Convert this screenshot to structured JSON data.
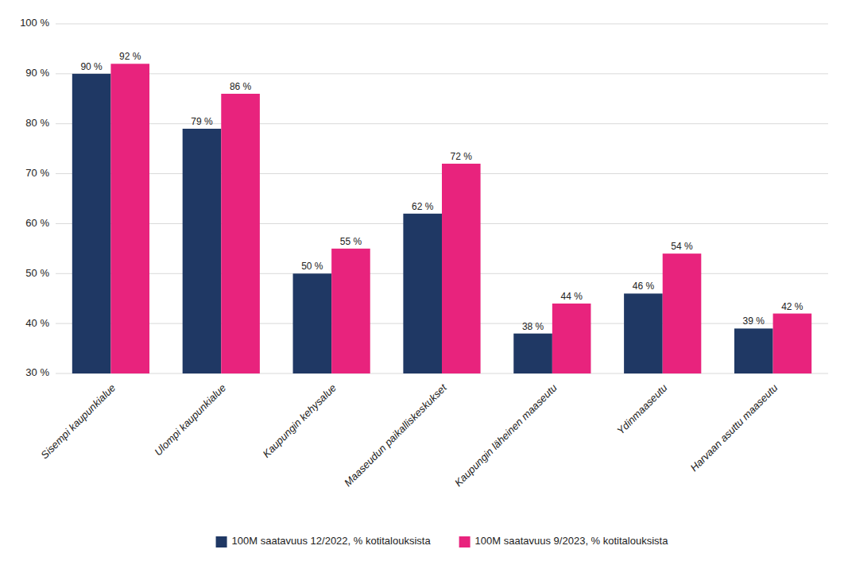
{
  "chart_data": {
    "type": "bar",
    "categories": [
      "Sisempi kaupunkialue",
      "Ulompi kaupunkialue",
      "Kaupungin kehysalue",
      "Maaseudun paikalliskeskukset",
      "Kaupungin läheinen maaseutu",
      "Ydinmaaseutu",
      "Harvaan asuttu maaseutu"
    ],
    "series": [
      {
        "name": "100M saatavuus 12/2022, % kotitalouksista",
        "color": "#1F3864",
        "values": [
          90,
          79,
          50,
          62,
          38,
          46,
          39
        ],
        "value_labels": [
          "90 %",
          "79 %",
          "50 %",
          "62 %",
          "38 %",
          "46 %",
          "39 %"
        ]
      },
      {
        "name": "100M saatavuus 9/2023, % kotitalouksista",
        "color": "#E8237D",
        "values": [
          92,
          86,
          55,
          72,
          44,
          54,
          42
        ],
        "value_labels": [
          "92 %",
          "86 %",
          "55 %",
          "72 %",
          "44 %",
          "54 %",
          "42 %"
        ]
      }
    ],
    "ylim": [
      30,
      100
    ],
    "yticks": [
      {
        "value": 30,
        "label": "30 %"
      },
      {
        "value": 40,
        "label": "40 %"
      },
      {
        "value": 50,
        "label": "50 %"
      },
      {
        "value": 60,
        "label": "60 %"
      },
      {
        "value": 70,
        "label": "70 %"
      },
      {
        "value": 80,
        "label": "80 %"
      },
      {
        "value": 90,
        "label": "90 %"
      },
      {
        "value": 100,
        "label": "100 %"
      }
    ],
    "grid": true,
    "data_labels": true,
    "legend": "bottom"
  }
}
